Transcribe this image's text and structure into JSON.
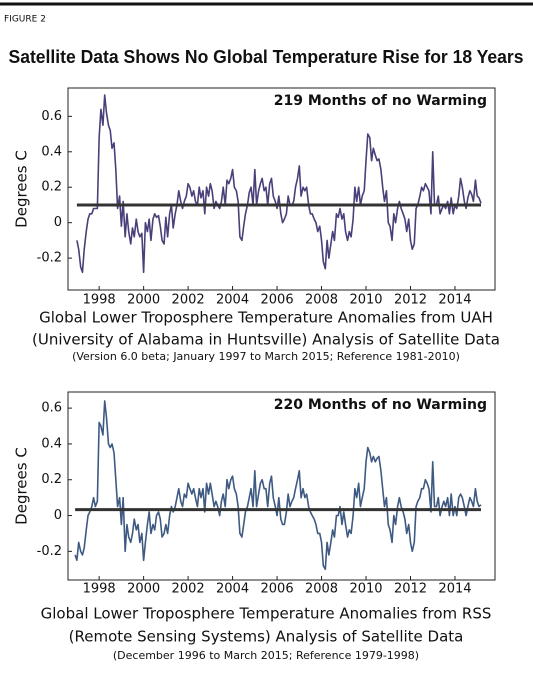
{
  "figure_label": "FIGURE 2",
  "title": "Satellite Data Shows No Global Temperature Rise for 18 Years",
  "chart_data": [
    {
      "type": "line",
      "annotation": "219 Months of no Warming",
      "ylabel": "Degrees C",
      "caption": [
        "Global Lower Troposphere Temperature Anomalies from UAH",
        "(University of Alabama in Huntsville) Analysis of Satellite Data"
      ],
      "note": "(Version 6.0 beta; January 1997 to March 2015; Reference 1981-2010)",
      "color": "#4b3f7a",
      "xlim": [
        1996.6,
        2015.8
      ],
      "xticks": [
        1998,
        2000,
        2002,
        2004,
        2006,
        2008,
        2010,
        2012,
        2014
      ],
      "ylim": [
        -0.38,
        0.76
      ],
      "yticks": [
        -0.2,
        0,
        0.2,
        0.4,
        0.6
      ],
      "x": [
        1997.0,
        1997.08,
        1997.17,
        1997.25,
        1997.33,
        1997.42,
        1997.5,
        1997.58,
        1997.67,
        1997.75,
        1997.83,
        1997.92,
        1998.0,
        1998.08,
        1998.17,
        1998.25,
        1998.33,
        1998.42,
        1998.5,
        1998.58,
        1998.67,
        1998.75,
        1998.83,
        1998.92,
        1999.0,
        1999.08,
        1999.17,
        1999.25,
        1999.33,
        1999.42,
        1999.5,
        1999.58,
        1999.67,
        1999.75,
        1999.83,
        1999.92,
        2000.0,
        2000.08,
        2000.17,
        2000.25,
        2000.33,
        2000.42,
        2000.5,
        2000.58,
        2000.67,
        2000.75,
        2000.83,
        2000.92,
        2001.0,
        2001.08,
        2001.17,
        2001.25,
        2001.33,
        2001.42,
        2001.5,
        2001.58,
        2001.67,
        2001.75,
        2001.83,
        2001.92,
        2002.0,
        2002.08,
        2002.17,
        2002.25,
        2002.33,
        2002.42,
        2002.5,
        2002.58,
        2002.67,
        2002.75,
        2002.83,
        2002.92,
        2003.0,
        2003.08,
        2003.17,
        2003.25,
        2003.33,
        2003.42,
        2003.5,
        2003.58,
        2003.67,
        2003.75,
        2003.83,
        2003.92,
        2004.0,
        2004.08,
        2004.17,
        2004.25,
        2004.33,
        2004.42,
        2004.5,
        2004.58,
        2004.67,
        2004.75,
        2004.83,
        2004.92,
        2005.0,
        2005.08,
        2005.17,
        2005.25,
        2005.33,
        2005.42,
        2005.5,
        2005.58,
        2005.67,
        2005.75,
        2005.83,
        2005.92,
        2006.0,
        2006.08,
        2006.17,
        2006.25,
        2006.33,
        2006.42,
        2006.5,
        2006.58,
        2006.67,
        2006.75,
        2006.83,
        2006.92,
        2007.0,
        2007.08,
        2007.17,
        2007.25,
        2007.33,
        2007.42,
        2007.5,
        2007.58,
        2007.67,
        2007.75,
        2007.83,
        2007.92,
        2008.0,
        2008.08,
        2008.17,
        2008.25,
        2008.33,
        2008.42,
        2008.5,
        2008.58,
        2008.67,
        2008.75,
        2008.83,
        2008.92,
        2009.0,
        2009.08,
        2009.17,
        2009.25,
        2009.33,
        2009.42,
        2009.5,
        2009.58,
        2009.67,
        2009.75,
        2009.83,
        2009.92,
        2010.0,
        2010.08,
        2010.17,
        2010.25,
        2010.33,
        2010.42,
        2010.5,
        2010.58,
        2010.67,
        2010.75,
        2010.83,
        2010.92,
        2011.0,
        2011.08,
        2011.17,
        2011.25,
        2011.33,
        2011.42,
        2011.5,
        2011.58,
        2011.67,
        2011.75,
        2011.83,
        2011.92,
        2012.0,
        2012.08,
        2012.17,
        2012.25,
        2012.33,
        2012.42,
        2012.5,
        2012.58,
        2012.67,
        2012.75,
        2012.83,
        2012.92,
        2013.0,
        2013.08,
        2013.17,
        2013.25,
        2013.33,
        2013.42,
        2013.5,
        2013.58,
        2013.67,
        2013.75,
        2013.83,
        2013.92,
        2014.0,
        2014.08,
        2014.17,
        2014.25,
        2014.33,
        2014.42,
        2014.5,
        2014.58,
        2014.67,
        2014.75,
        2014.83,
        2014.92,
        2015.0,
        2015.08,
        2015.17
      ],
      "values": [
        -0.1,
        -0.15,
        -0.25,
        -0.28,
        -0.15,
        -0.05,
        0.02,
        0.05,
        0.05,
        0.08,
        0.08,
        0.08,
        0.48,
        0.64,
        0.55,
        0.72,
        0.62,
        0.55,
        0.52,
        0.42,
        0.45,
        0.3,
        0.08,
        0.15,
        -0.02,
        0.12,
        -0.08,
        0.05,
        -0.05,
        -0.12,
        -0.03,
        -0.08,
        0.02,
        -0.05,
        -0.08,
        -0.06,
        -0.28,
        0.0,
        -0.05,
        0.02,
        -0.1,
        0.02,
        0.05,
        0.03,
        0.04,
        -0.02,
        -0.1,
        -0.12,
        0.03,
        -0.08,
        0.05,
        0.1,
        -0.03,
        0.05,
        0.1,
        0.18,
        0.12,
        0.08,
        0.12,
        0.15,
        0.22,
        0.2,
        0.15,
        0.18,
        0.12,
        0.1,
        0.2,
        0.14,
        0.18,
        0.05,
        0.2,
        0.15,
        0.22,
        0.18,
        0.08,
        0.12,
        0.1,
        0.08,
        0.12,
        0.2,
        0.1,
        0.24,
        0.22,
        0.25,
        0.3,
        0.2,
        0.18,
        0.12,
        -0.08,
        -0.1,
        -0.02,
        0.05,
        0.1,
        0.17,
        0.2,
        0.1,
        0.3,
        0.1,
        0.18,
        0.22,
        0.25,
        0.18,
        0.2,
        0.1,
        0.22,
        0.25,
        0.15,
        0.12,
        0.08,
        0.15,
        0.05,
        0.0,
        0.02,
        0.05,
        0.15,
        0.1,
        0.1,
        0.12,
        0.2,
        0.25,
        0.32,
        0.15,
        0.2,
        0.18,
        0.2,
        0.1,
        0.05,
        0.05,
        0.02,
        0.0,
        -0.05,
        -0.02,
        -0.1,
        -0.22,
        -0.26,
        -0.1,
        -0.2,
        -0.12,
        -0.05,
        -0.1,
        0.05,
        0.03,
        0.08,
        0.02,
        0.05,
        -0.05,
        -0.1,
        -0.05,
        -0.08,
        0.02,
        0.2,
        0.12,
        0.2,
        0.1,
        0.15,
        0.18,
        0.35,
        0.5,
        0.48,
        0.35,
        0.42,
        0.38,
        0.35,
        0.36,
        0.3,
        0.2,
        0.12,
        0.18,
        0.0,
        -0.02,
        -0.1,
        0.05,
        0.0,
        0.08,
        0.12,
        0.08,
        0.05,
        0.02,
        -0.05,
        0.02,
        -0.1,
        -0.15,
        -0.12,
        0.08,
        0.1,
        0.15,
        0.2,
        0.18,
        0.22,
        0.2,
        0.18,
        0.05,
        0.4,
        0.1,
        0.1,
        0.15,
        0.05,
        0.08,
        0.1,
        0.08,
        0.12,
        0.05,
        0.14,
        0.05,
        0.1,
        0.08,
        0.15,
        0.25,
        0.2,
        0.12,
        0.08,
        0.14,
        0.18,
        0.16,
        0.12,
        0.24,
        0.15,
        0.14,
        0.11
      ],
      "trend": {
        "color": "#333333",
        "x": [
          1997.0,
          2015.17
        ],
        "values": [
          0.1,
          0.1
        ]
      }
    },
    {
      "type": "line",
      "annotation": "220 Months of no Warming",
      "ylabel": "Degrees C",
      "caption": [
        "Global Lower Troposphere Temperature Anomalies from RSS",
        "(Remote Sensing Systems) Analysis of Satellite Data"
      ],
      "note": "(December 1996 to March 2015; Reference 1979-1998)",
      "color": "#3f5a82",
      "xlim": [
        1996.6,
        2015.8
      ],
      "xticks": [
        1998,
        2000,
        2002,
        2004,
        2006,
        2008,
        2010,
        2012,
        2014
      ],
      "ylim": [
        -0.36,
        0.69
      ],
      "yticks": [
        -0.2,
        0,
        0.2,
        0.4,
        0.6
      ],
      "x": [
        1996.92,
        1997.0,
        1997.08,
        1997.17,
        1997.25,
        1997.33,
        1997.42,
        1997.5,
        1997.58,
        1997.67,
        1997.75,
        1997.83,
        1997.92,
        1998.0,
        1998.08,
        1998.17,
        1998.25,
        1998.33,
        1998.42,
        1998.5,
        1998.58,
        1998.67,
        1998.75,
        1998.83,
        1998.92,
        1999.0,
        1999.08,
        1999.17,
        1999.25,
        1999.33,
        1999.42,
        1999.5,
        1999.58,
        1999.67,
        1999.75,
        1999.83,
        1999.92,
        2000.0,
        2000.08,
        2000.17,
        2000.25,
        2000.33,
        2000.42,
        2000.5,
        2000.58,
        2000.67,
        2000.75,
        2000.83,
        2000.92,
        2001.0,
        2001.08,
        2001.17,
        2001.25,
        2001.33,
        2001.42,
        2001.5,
        2001.58,
        2001.67,
        2001.75,
        2001.83,
        2001.92,
        2002.0,
        2002.08,
        2002.17,
        2002.25,
        2002.33,
        2002.42,
        2002.5,
        2002.58,
        2002.67,
        2002.75,
        2002.83,
        2002.92,
        2003.0,
        2003.08,
        2003.17,
        2003.25,
        2003.33,
        2003.42,
        2003.5,
        2003.58,
        2003.67,
        2003.75,
        2003.83,
        2003.92,
        2004.0,
        2004.08,
        2004.17,
        2004.25,
        2004.33,
        2004.42,
        2004.5,
        2004.58,
        2004.67,
        2004.75,
        2004.83,
        2004.92,
        2005.0,
        2005.08,
        2005.17,
        2005.25,
        2005.33,
        2005.42,
        2005.5,
        2005.58,
        2005.67,
        2005.75,
        2005.83,
        2005.92,
        2006.0,
        2006.08,
        2006.17,
        2006.25,
        2006.33,
        2006.42,
        2006.5,
        2006.58,
        2006.67,
        2006.75,
        2006.83,
        2006.92,
        2007.0,
        2007.08,
        2007.17,
        2007.25,
        2007.33,
        2007.42,
        2007.5,
        2007.58,
        2007.67,
        2007.75,
        2007.83,
        2007.92,
        2008.0,
        2008.08,
        2008.17,
        2008.25,
        2008.33,
        2008.42,
        2008.5,
        2008.58,
        2008.67,
        2008.75,
        2008.83,
        2008.92,
        2009.0,
        2009.08,
        2009.17,
        2009.25,
        2009.33,
        2009.42,
        2009.5,
        2009.58,
        2009.67,
        2009.75,
        2009.83,
        2009.92,
        2010.0,
        2010.08,
        2010.17,
        2010.25,
        2010.33,
        2010.42,
        2010.5,
        2010.58,
        2010.67,
        2010.75,
        2010.83,
        2010.92,
        2011.0,
        2011.08,
        2011.17,
        2011.25,
        2011.33,
        2011.42,
        2011.5,
        2011.58,
        2011.67,
        2011.75,
        2011.83,
        2011.92,
        2012.0,
        2012.08,
        2012.17,
        2012.25,
        2012.33,
        2012.42,
        2012.5,
        2012.58,
        2012.67,
        2012.75,
        2012.83,
        2012.92,
        2013.0,
        2013.08,
        2013.17,
        2013.25,
        2013.33,
        2013.42,
        2013.5,
        2013.58,
        2013.67,
        2013.75,
        2013.83,
        2013.92,
        2014.0,
        2014.08,
        2014.17,
        2014.25,
        2014.33,
        2014.42,
        2014.5,
        2014.58,
        2014.67,
        2014.75,
        2014.83,
        2014.92,
        2015.0,
        2015.08,
        2015.17
      ],
      "values": [
        -0.22,
        -0.25,
        -0.15,
        -0.2,
        -0.22,
        -0.18,
        -0.08,
        0.0,
        0.02,
        0.05,
        0.1,
        0.05,
        0.08,
        0.52,
        0.5,
        0.45,
        0.64,
        0.55,
        0.4,
        0.38,
        0.4,
        0.35,
        0.2,
        0.05,
        0.1,
        -0.05,
        0.1,
        -0.2,
        -0.05,
        -0.12,
        -0.15,
        -0.1,
        -0.02,
        -0.08,
        -0.05,
        -0.15,
        -0.1,
        -0.25,
        -0.15,
        -0.05,
        0.02,
        -0.1,
        -0.05,
        -0.08,
        0.0,
        0.02,
        -0.02,
        -0.12,
        -0.1,
        -0.05,
        -0.1,
        0.0,
        0.05,
        0.02,
        0.05,
        0.1,
        0.15,
        0.08,
        0.05,
        0.12,
        0.1,
        0.18,
        0.15,
        0.12,
        0.15,
        0.1,
        0.05,
        0.15,
        0.1,
        0.15,
        0.02,
        0.18,
        0.12,
        0.18,
        0.12,
        0.05,
        0.08,
        0.05,
        0.0,
        0.08,
        0.12,
        0.05,
        0.2,
        0.15,
        0.2,
        0.22,
        0.15,
        0.12,
        0.05,
        -0.1,
        -0.12,
        -0.05,
        0.02,
        0.05,
        0.1,
        0.15,
        0.05,
        0.25,
        0.05,
        0.12,
        0.18,
        0.2,
        0.15,
        0.15,
        0.05,
        0.18,
        0.22,
        0.1,
        0.05,
        0.0,
        0.1,
        -0.02,
        -0.05,
        -0.05,
        0.02,
        0.12,
        0.05,
        0.08,
        0.1,
        0.15,
        0.2,
        0.25,
        0.1,
        0.15,
        0.1,
        0.12,
        0.05,
        0.02,
        0.0,
        -0.02,
        -0.05,
        -0.1,
        -0.1,
        -0.15,
        -0.28,
        -0.3,
        -0.15,
        -0.22,
        -0.15,
        -0.08,
        -0.12,
        0.0,
        0.0,
        0.05,
        -0.05,
        0.02,
        -0.05,
        -0.12,
        -0.08,
        -0.1,
        0.0,
        0.15,
        0.1,
        0.18,
        0.05,
        0.1,
        0.15,
        0.3,
        0.38,
        0.35,
        0.3,
        0.33,
        0.3,
        0.32,
        0.33,
        0.25,
        0.15,
        0.05,
        0.1,
        -0.05,
        -0.08,
        -0.15,
        0.0,
        -0.05,
        0.05,
        0.1,
        0.05,
        0.02,
        -0.02,
        -0.1,
        -0.05,
        -0.15,
        -0.2,
        -0.15,
        0.05,
        0.08,
        0.1,
        0.15,
        0.15,
        0.2,
        0.18,
        0.15,
        0.02,
        0.3,
        0.05,
        0.05,
        0.1,
        0.0,
        0.05,
        0.08,
        0.05,
        0.1,
        0.0,
        0.12,
        0.0,
        0.05,
        0.0,
        0.1,
        0.12,
        0.1,
        0.05,
        0.0,
        0.05,
        0.1,
        0.08,
        0.05,
        0.15,
        0.08,
        0.05,
        0.06
      ],
      "trend": {
        "color": "#333333",
        "x": [
          1996.92,
          2015.17
        ],
        "values": [
          0.033,
          0.033
        ]
      }
    }
  ]
}
